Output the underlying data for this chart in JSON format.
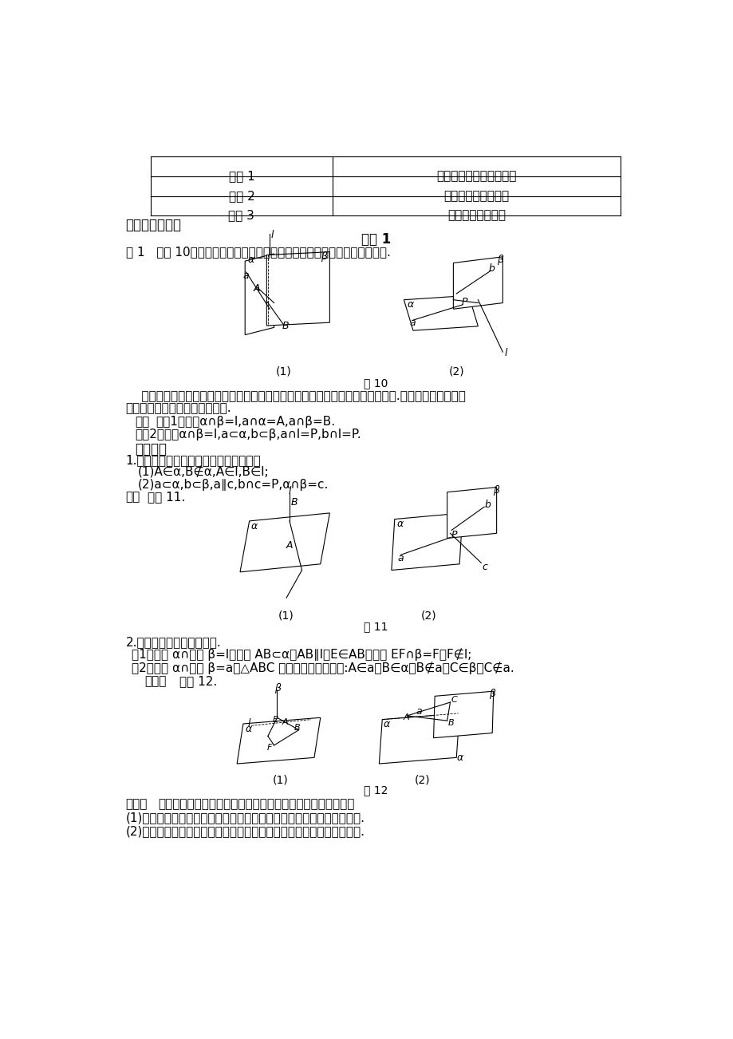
{
  "bg_color": "#ffffff",
  "page_width": 9.2,
  "page_height": 13.02,
  "table_rows": [
    [
      "公理 1",
      "判定直线在平面内的依据"
    ],
    [
      "公理 2",
      "确定一个平面的依据"
    ],
    [
      "公理 3",
      "两平面相交的依据"
    ]
  ],
  "fig10_label": "图 10",
  "fig11_label": "图 11",
  "fig12_label": "图 12"
}
